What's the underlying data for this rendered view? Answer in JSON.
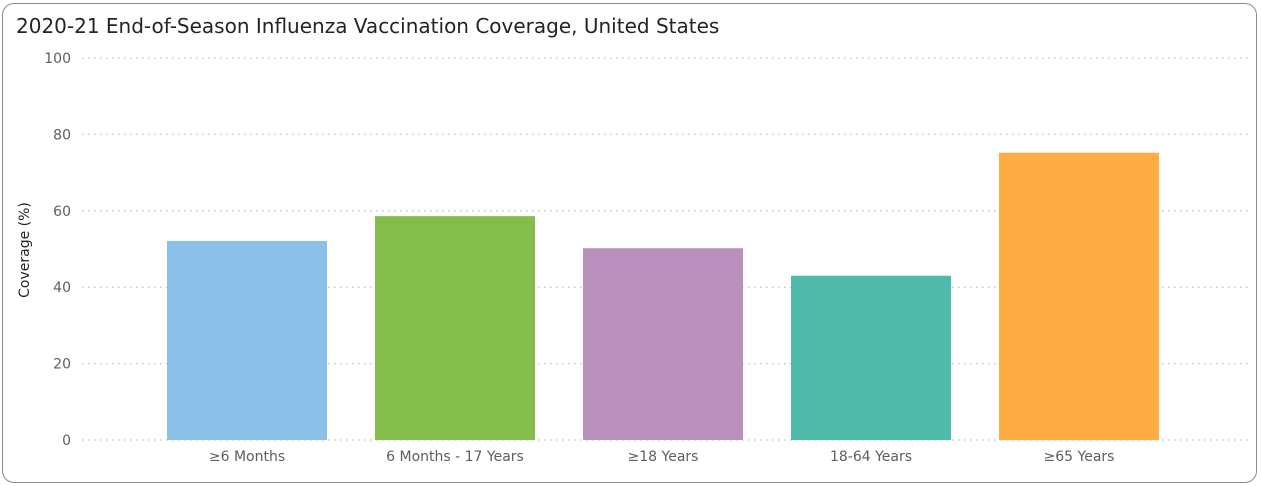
{
  "chart_data": {
    "type": "bar",
    "title": "2020-21 End-of-Season Influenza Vaccination Coverage, United States",
    "ylabel": "Coverage (%)",
    "xlabel": "",
    "categories": [
      "≥6 Months",
      "6 Months - 17 Years",
      "≥18 Years",
      "18-64 Years",
      "≥65 Years"
    ],
    "values": [
      52.1,
      58.6,
      50.2,
      43.0,
      75.2
    ],
    "colors": [
      "#8bc1e8",
      "#84bd4b",
      "#b890bb",
      "#4fb9aa",
      "#ffac44"
    ],
    "ylim": [
      0,
      100
    ],
    "yticks": [
      0,
      20,
      40,
      60,
      80,
      100
    ],
    "grid": true,
    "grid_color": "#c8c6c4"
  }
}
